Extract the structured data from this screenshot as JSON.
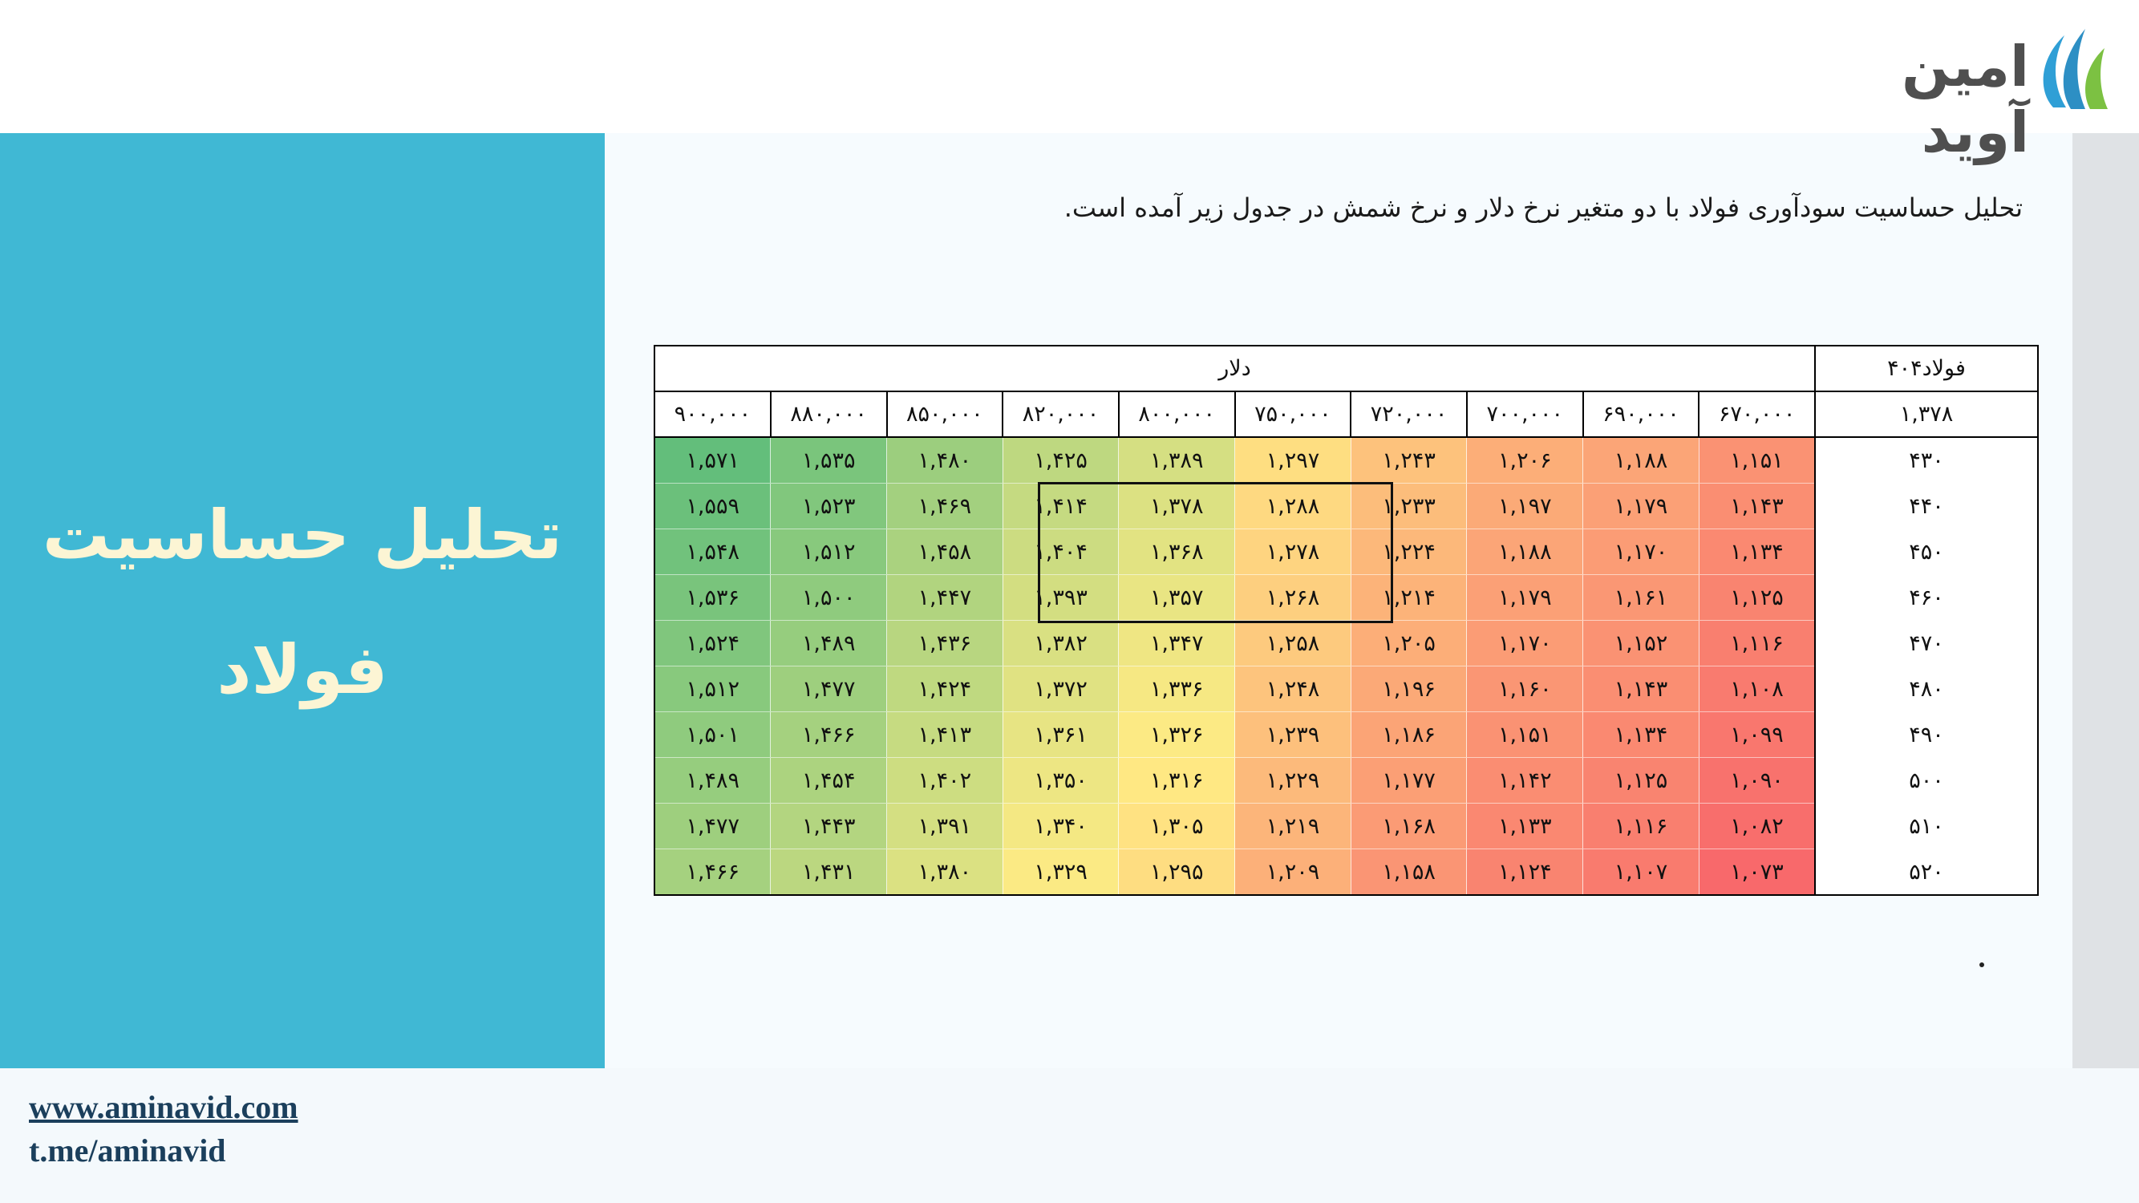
{
  "brand": {
    "logo_text": "امین آوید",
    "logo_icon": "aminavid-stripes-icon"
  },
  "sidebar": {
    "title_line1": "تحلیل حساسیت",
    "title_line2": "فولاد"
  },
  "footer": {
    "website": "www.aminavid.com",
    "telegram": "t.me/aminavid"
  },
  "intro_text": "تحلیل حساسیت سودآوری فولاد با دو متغیر نرخ دلار و نرخ شمش در جدول زیر آمده است.",
  "footnote_dot": ".",
  "table": {
    "corner_label": "فولاد۴۰۴",
    "dollar_label": "دلار",
    "base_value": "۱,۳۷۸",
    "columns": [
      "۶۷۰,۰۰۰",
      "۶۹۰,۰۰۰",
      "۷۰۰,۰۰۰",
      "۷۲۰,۰۰۰",
      "۷۵۰,۰۰۰",
      "۸۰۰,۰۰۰",
      "۸۲۰,۰۰۰",
      "۸۵۰,۰۰۰",
      "۸۸۰,۰۰۰",
      "۹۰۰,۰۰۰"
    ],
    "rows": [
      {
        "label": "۴۳۰",
        "values": [
          "۱,۱۵۱",
          "۱,۱۸۸",
          "۱,۲۰۶",
          "۱,۲۴۳",
          "۱,۲۹۷",
          "۱,۳۸۹",
          "۱,۴۲۵",
          "۱,۴۸۰",
          "۱,۵۳۵",
          "۱,۵۷۱"
        ]
      },
      {
        "label": "۴۴۰",
        "values": [
          "۱,۱۴۳",
          "۱,۱۷۹",
          "۱,۱۹۷",
          "۱,۲۳۳",
          "۱,۲۸۸",
          "۱,۳۷۸",
          "۱,۴۱۴",
          "۱,۴۶۹",
          "۱,۵۲۳",
          "۱,۵۵۹"
        ]
      },
      {
        "label": "۴۵۰",
        "values": [
          "۱,۱۳۴",
          "۱,۱۷۰",
          "۱,۱۸۸",
          "۱,۲۲۴",
          "۱,۲۷۸",
          "۱,۳۶۸",
          "۱,۴۰۴",
          "۱,۴۵۸",
          "۱,۵۱۲",
          "۱,۵۴۸"
        ]
      },
      {
        "label": "۴۶۰",
        "values": [
          "۱,۱۲۵",
          "۱,۱۶۱",
          "۱,۱۷۹",
          "۱,۲۱۴",
          "۱,۲۶۸",
          "۱,۳۵۷",
          "۱,۳۹۳",
          "۱,۴۴۷",
          "۱,۵۰۰",
          "۱,۵۳۶"
        ]
      },
      {
        "label": "۴۷۰",
        "values": [
          "۱,۱۱۶",
          "۱,۱۵۲",
          "۱,۱۷۰",
          "۱,۲۰۵",
          "۱,۲۵۸",
          "۱,۳۴۷",
          "۱,۳۸۲",
          "۱,۴۳۶",
          "۱,۴۸۹",
          "۱,۵۲۴"
        ]
      },
      {
        "label": "۴۸۰",
        "values": [
          "۱,۱۰۸",
          "۱,۱۴۳",
          "۱,۱۶۰",
          "۱,۱۹۶",
          "۱,۲۴۸",
          "۱,۳۳۶",
          "۱,۳۷۲",
          "۱,۴۲۴",
          "۱,۴۷۷",
          "۱,۵۱۲"
        ]
      },
      {
        "label": "۴۹۰",
        "values": [
          "۱,۰۹۹",
          "۱,۱۳۴",
          "۱,۱۵۱",
          "۱,۱۸۶",
          "۱,۲۳۹",
          "۱,۳۲۶",
          "۱,۳۶۱",
          "۱,۴۱۳",
          "۱,۴۶۶",
          "۱,۵۰۱"
        ]
      },
      {
        "label": "۵۰۰",
        "values": [
          "۱,۰۹۰",
          "۱,۱۲۵",
          "۱,۱۴۲",
          "۱,۱۷۷",
          "۱,۲۲۹",
          "۱,۳۱۶",
          "۱,۳۵۰",
          "۱,۴۰۲",
          "۱,۴۵۴",
          "۱,۴۸۹"
        ]
      },
      {
        "label": "۵۱۰",
        "values": [
          "۱,۰۸۲",
          "۱,۱۱۶",
          "۱,۱۳۳",
          "۱,۱۶۸",
          "۱,۲۱۹",
          "۱,۳۰۵",
          "۱,۳۴۰",
          "۱,۳۹۱",
          "۱,۴۴۳",
          "۱,۴۷۷"
        ]
      },
      {
        "label": "۵۲۰",
        "values": [
          "۱,۰۷۳",
          "۱,۱۰۷",
          "۱,۱۲۴",
          "۱,۱۵۸",
          "۱,۲۰۹",
          "۱,۲۹۵",
          "۱,۳۲۹",
          "۱,۳۸۰",
          "۱,۴۳۱",
          "۱,۴۶۶"
        ]
      }
    ],
    "heat_colors": {
      "low": "#f8696b",
      "mid": "#ffeb84",
      "high": "#63be7b"
    },
    "highlight_box": {
      "rows": [
        1,
        2,
        3
      ],
      "columns": [
        4,
        5,
        6
      ]
    }
  }
}
